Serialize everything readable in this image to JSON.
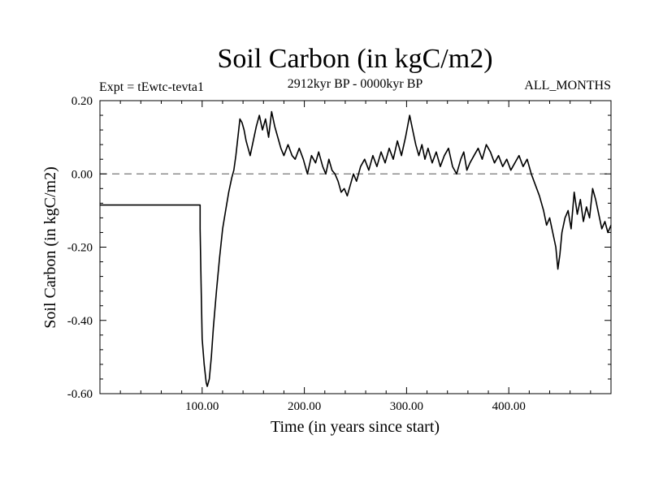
{
  "chart_data": {
    "type": "line",
    "title": "Soil Carbon (in kgC/m2)",
    "subtitle": "2912kyr BP - 0000kyr BP",
    "experiment_label": "Expt = tEwtc-tevta1",
    "months_label": "ALL_MONTHS",
    "xlabel": "Time (in years since start)",
    "ylabel": "Soil Carbon (in kgC/m2)",
    "xlim": [
      0,
      500
    ],
    "ylim": [
      -0.6,
      0.2
    ],
    "x_ticks": [
      100,
      200,
      300,
      400
    ],
    "x_tick_labels": [
      "100.00",
      "200.00",
      "300.00",
      "400.00"
    ],
    "y_ticks": [
      -0.6,
      -0.4,
      -0.2,
      0.0,
      0.2
    ],
    "y_tick_labels": [
      "-0.60",
      "-0.40",
      "-0.20",
      "0.00",
      "0.20"
    ],
    "reference_line": {
      "y": 0.0,
      "style": "dashed",
      "color": "#777777"
    },
    "line_color": "#000000",
    "series": [
      {
        "name": "Soil Carbon",
        "x": [
          0,
          98,
          98,
          99,
          100,
          102,
          104,
          105,
          107,
          109,
          111,
          114,
          117,
          120,
          123,
          126,
          129,
          131,
          133,
          135,
          137,
          139,
          141,
          143,
          145,
          147,
          150,
          153,
          156,
          159,
          162,
          165,
          168,
          171,
          174,
          177,
          180,
          184,
          188,
          191,
          195,
          199,
          203,
          207,
          211,
          214,
          218,
          221,
          224,
          227,
          230,
          233,
          236,
          239,
          242,
          245,
          248,
          251,
          255,
          259,
          263,
          267,
          271,
          275,
          279,
          283,
          287,
          291,
          295,
          299,
          303,
          306,
          309,
          312,
          315,
          318,
          321,
          325,
          329,
          333,
          337,
          341,
          345,
          349,
          353,
          356,
          359,
          362,
          366,
          370,
          374,
          378,
          382,
          386,
          390,
          394,
          398,
          402,
          406,
          410,
          414,
          418,
          422,
          426,
          430,
          434,
          437,
          440,
          443,
          446,
          448,
          450,
          452,
          455,
          458,
          461,
          464,
          467,
          470,
          473,
          476,
          479,
          482,
          485,
          488,
          491,
          494,
          497,
          500
        ],
        "y": [
          -0.085,
          -0.085,
          -0.15,
          -0.3,
          -0.45,
          -0.52,
          -0.57,
          -0.58,
          -0.56,
          -0.5,
          -0.42,
          -0.32,
          -0.23,
          -0.15,
          -0.1,
          -0.05,
          -0.01,
          0.01,
          0.05,
          0.1,
          0.15,
          0.14,
          0.12,
          0.09,
          0.07,
          0.05,
          0.09,
          0.13,
          0.16,
          0.12,
          0.15,
          0.1,
          0.17,
          0.13,
          0.1,
          0.07,
          0.05,
          0.08,
          0.05,
          0.04,
          0.07,
          0.04,
          0.0,
          0.05,
          0.03,
          0.06,
          0.02,
          0.0,
          0.04,
          0.01,
          0.0,
          -0.02,
          -0.05,
          -0.04,
          -0.06,
          -0.03,
          0.0,
          -0.02,
          0.02,
          0.04,
          0.01,
          0.05,
          0.02,
          0.06,
          0.03,
          0.07,
          0.04,
          0.09,
          0.05,
          0.1,
          0.16,
          0.12,
          0.08,
          0.05,
          0.08,
          0.04,
          0.07,
          0.03,
          0.06,
          0.02,
          0.05,
          0.07,
          0.02,
          0.0,
          0.04,
          0.06,
          0.01,
          0.03,
          0.05,
          0.07,
          0.04,
          0.08,
          0.06,
          0.03,
          0.05,
          0.02,
          0.04,
          0.01,
          0.03,
          0.05,
          0.02,
          0.04,
          0.0,
          -0.03,
          -0.06,
          -0.1,
          -0.14,
          -0.12,
          -0.16,
          -0.2,
          -0.26,
          -0.22,
          -0.16,
          -0.12,
          -0.1,
          -0.15,
          -0.05,
          -0.11,
          -0.07,
          -0.13,
          -0.09,
          -0.12,
          -0.04,
          -0.07,
          -0.11,
          -0.15,
          -0.13,
          -0.16,
          -0.14
        ]
      }
    ]
  }
}
